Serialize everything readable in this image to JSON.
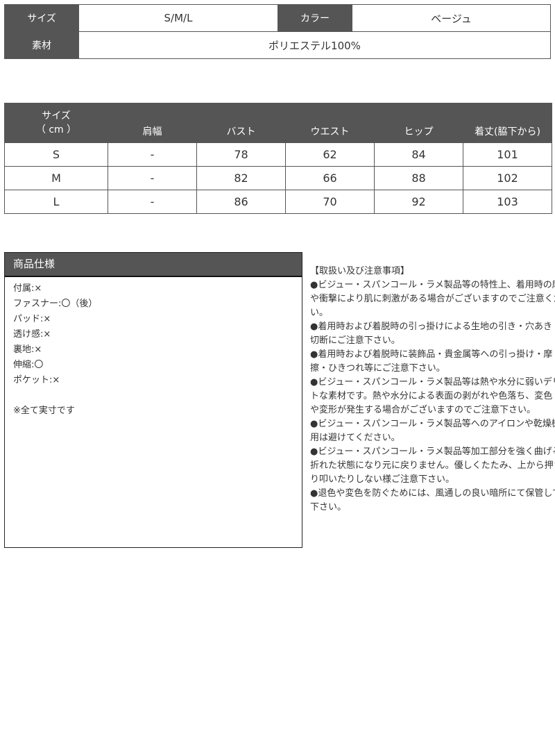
{
  "basic": {
    "size_label": "サイズ",
    "size_value": "S/M/L",
    "color_label": "カラー",
    "color_value": "ベージュ",
    "material_label": "素材",
    "material_value": "ポリエステル100%"
  },
  "size_table": {
    "header_size": "サイズ",
    "header_unit": "（ cm ）",
    "columns": [
      "肩幅",
      "バスト",
      "ウエスト",
      "ヒップ",
      "着丈(脇下から)"
    ],
    "rows": [
      {
        "size": "S",
        "values": [
          "-",
          "78",
          "62",
          "84",
          "101"
        ]
      },
      {
        "size": "M",
        "values": [
          "-",
          "82",
          "66",
          "88",
          "102"
        ]
      },
      {
        "size": "L",
        "values": [
          "-",
          "86",
          "70",
          "92",
          "103"
        ]
      }
    ]
  },
  "spec": {
    "title": "商品仕様",
    "items": [
      "付属:×",
      "ファスナー:〇（後）",
      "パッド:×",
      "透け感:×",
      "裏地:×",
      "伸縮:〇",
      "ポケット:×"
    ],
    "note": "※全て実寸です"
  },
  "notes": {
    "title": "【取扱い及び注意事項】",
    "lines": [
      "●ビジュー・スパンコール・ラメ製品等の特性上、着用時の摩擦",
      "や衝撃により肌に刺激がある場合がございますのでご注意くださ",
      "い。",
      "●着用時および着脱時の引っ掛けによる生地の引き・穴あき・",
      "切断にご注意下さい。",
      "●着用時および着脱時に装飾品・貴金属等への引っ掛け・摩",
      "擦・ひきつれ等にご注意下さい。",
      "●ビジュー・スパンコール・ラメ製品等は熱や水分に弱いデリケー",
      "トな素材です。熱や水分による表面の剥がれや色落ち、変色",
      "や変形が発生する場合がございますのでご注意下さい。",
      "●ビジュー・スパンコール・ラメ製品等へのアイロンや乾燥機の使",
      "用は避けてください。",
      "●ビジュー・スパンコール・ラメ製品等加工部分を強く曲げると",
      "折れた状態になり元に戻りません。優しくたたみ、上から押さえた",
      "り叩いたりしない様ご注意下さい。",
      "●退色や変色を防ぐためには、風通しの良い暗所にて保管して",
      "下さい。"
    ]
  }
}
